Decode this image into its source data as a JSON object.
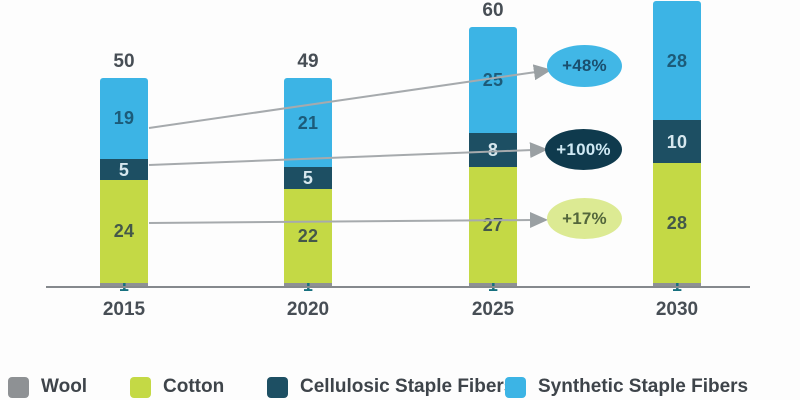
{
  "chart_data": {
    "type": "bar",
    "stacked": true,
    "title": "",
    "xlabel": "",
    "ylabel": "",
    "categories": [
      "2015",
      "2020",
      "2025",
      "2030"
    ],
    "series": [
      {
        "name": "Wool",
        "color": "#8e9194",
        "values": [
          1,
          1,
          1,
          1
        ]
      },
      {
        "name": "Cotton",
        "color": "#c4d945",
        "values": [
          24,
          22,
          27,
          28
        ]
      },
      {
        "name": "Cellulosic Staple Fibers",
        "color": "#1d4f63",
        "values": [
          5,
          5,
          8,
          10
        ]
      },
      {
        "name": "Synthetic Staple Fibers",
        "color": "#3cb4e5",
        "values": [
          19,
          21,
          25,
          28
        ]
      }
    ],
    "totals": [
      "50",
      "49",
      "60",
      ""
    ],
    "ylim": [
      0,
      67
    ],
    "grid": false,
    "legend_position": "bottom",
    "annotations": [
      {
        "label": "+48%",
        "series": "Synthetic Staple Fibers",
        "fill": "#41b7e6",
        "text_color": "#1a4f6e"
      },
      {
        "label": "+100%",
        "series": "Cellulosic Staple Fibers",
        "fill": "#0f3a4d",
        "text_color": "#cfe9f4"
      },
      {
        "label": "+17%",
        "series": "Cotton",
        "fill": "#dcea93",
        "text_color": "#53663b"
      }
    ]
  }
}
